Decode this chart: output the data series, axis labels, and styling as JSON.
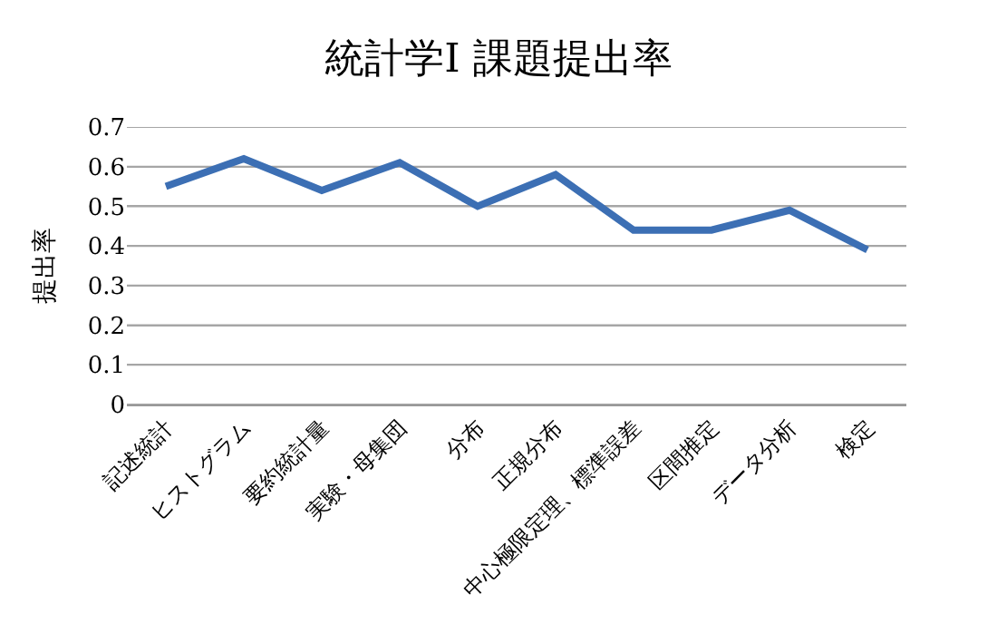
{
  "chart_data": {
    "type": "line",
    "title": "統計学Ⅰ 課題提出率",
    "ylabel": "提出率",
    "categories": [
      "記述統計",
      "ヒストグラム",
      "要約統計量",
      "実験・母集団",
      "分布",
      "正規分布",
      "中心極限定理、標準誤差",
      "区間推定",
      "データ分析",
      "検定"
    ],
    "series": [
      {
        "color": "#3c6fb4",
        "values": [
          0.55,
          0.62,
          0.54,
          0.61,
          0.5,
          0.58,
          0.44,
          0.44,
          0.49,
          0.39
        ]
      }
    ],
    "ylim": [
      0,
      0.7
    ],
    "yticks": [
      0,
      0.1,
      0.2,
      0.3,
      0.4,
      0.5,
      0.6,
      0.7
    ],
    "grid": "y",
    "marker": "none",
    "line_style": "solid"
  }
}
